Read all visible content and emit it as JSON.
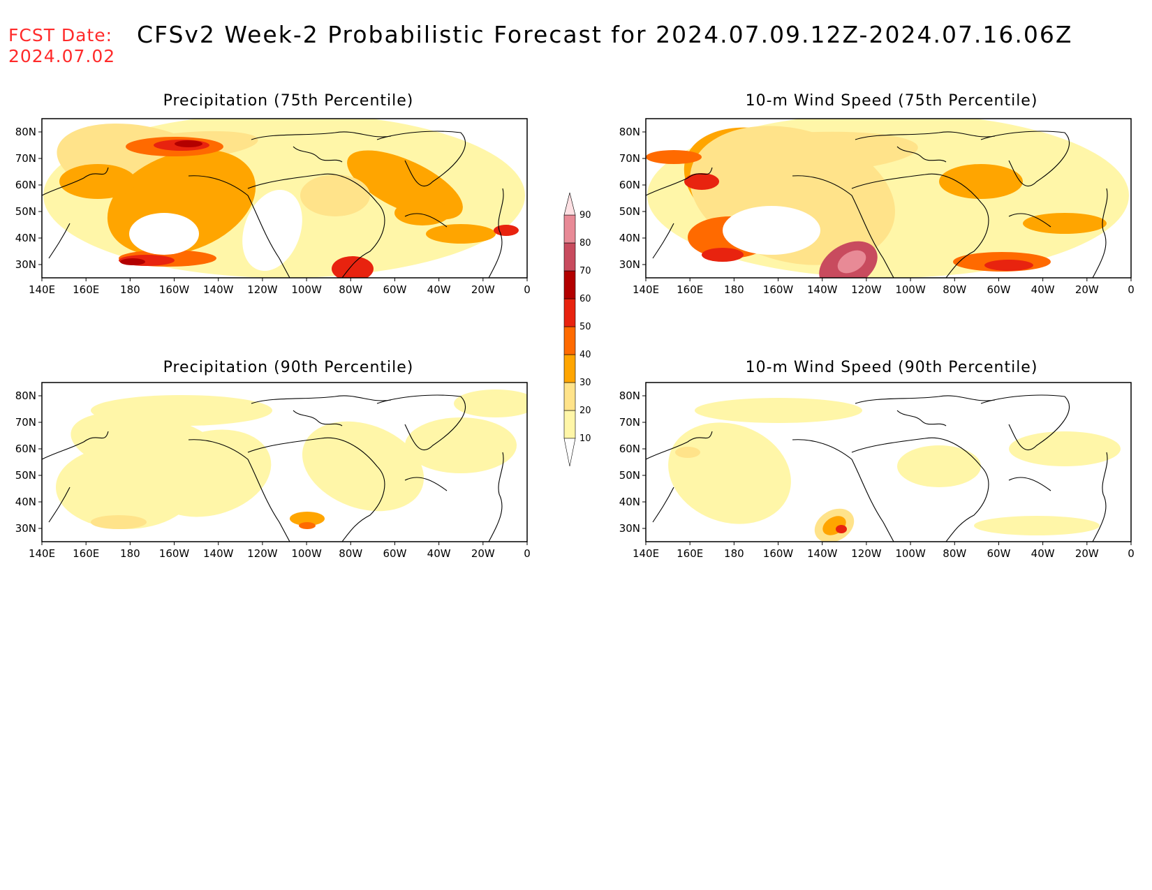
{
  "header": {
    "fcst_label": "FCST Date:",
    "fcst_date": "2024.07.02",
    "title": "CFSv2 Week-2 Probabilistic Forecast for 2024.07.09.12Z-2024.07.16.06Z"
  },
  "axes": {
    "lon_ticks": [
      "140E",
      "160E",
      "180",
      "160W",
      "140W",
      "120W",
      "100W",
      "80W",
      "60W",
      "40W",
      "20W",
      "0"
    ],
    "lat_ticks": [
      "80N",
      "70N",
      "60N",
      "50N",
      "40N",
      "30N"
    ],
    "lon_range": [
      140,
      360
    ],
    "lat_range": [
      25,
      85
    ]
  },
  "colorbar": {
    "levels": [
      "10",
      "20",
      "30",
      "40",
      "50",
      "60",
      "70",
      "80",
      "90"
    ],
    "colors": [
      "#fff6a8",
      "#ffe38a",
      "#ffa500",
      "#ff6a00",
      "#e8230f",
      "#b30000",
      "#c84b5e",
      "#e88a96",
      "#fde0e3"
    ]
  },
  "panels": [
    {
      "id": "precip-75",
      "title": "Precipitation (75th Percentile)"
    },
    {
      "id": "wind-75",
      "title": "10-m Wind Speed (75th Percentile)"
    },
    {
      "id": "precip-90",
      "title": "Precipitation (90th Percentile)"
    },
    {
      "id": "wind-90",
      "title": "10-m Wind Speed (90th Percentile)"
    }
  ]
}
